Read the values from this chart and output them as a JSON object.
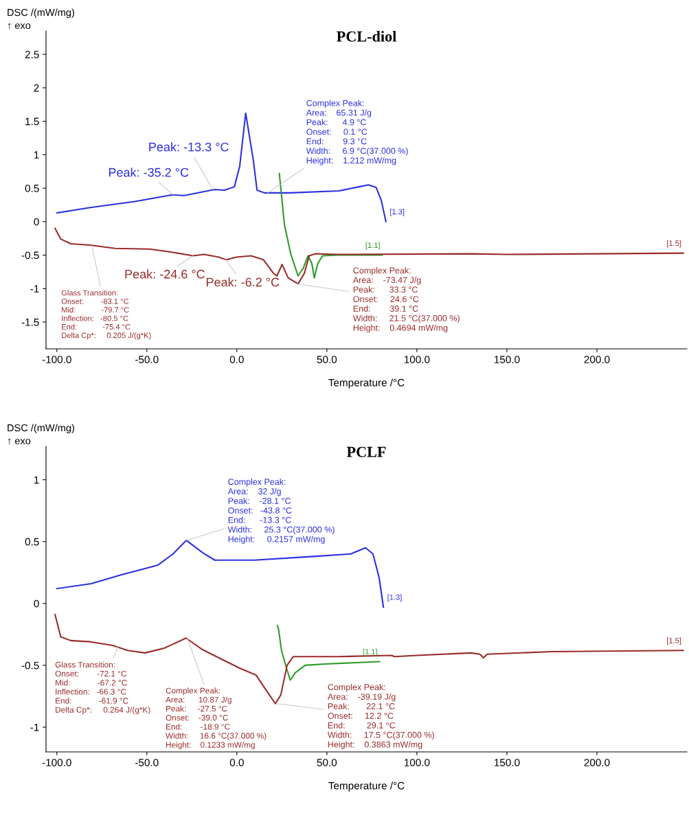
{
  "chart_data": [
    {
      "type": "line",
      "title": "PCL-diol",
      "xlabel": "Temperature /°C",
      "ylabel": "DSC /(mW/mg)\n↑ exo",
      "xlim": [
        -106,
        250
      ],
      "ylim": [
        -1.9,
        2.85
      ],
      "xticks": [
        {
          "value": -100,
          "label": "-100.0"
        },
        {
          "value": -50,
          "label": "-50.0"
        },
        {
          "value": 0,
          "label": "0.0"
        },
        {
          "value": 50,
          "label": "50.0"
        },
        {
          "value": 100,
          "label": "100.0"
        },
        {
          "value": 150,
          "label": "150.0"
        },
        {
          "value": 200,
          "label": "200.0"
        }
      ],
      "yticks": [
        2.5,
        2,
        1.5,
        1,
        0.5,
        0,
        -0.5,
        -1,
        -1.5
      ],
      "grid": false,
      "legend": false,
      "marker": "none",
      "line_style": "solid",
      "series": [
        {
          "name": "[1.3]",
          "color": "#2b2fe0",
          "x": [
            -99.9,
            -81.4,
            -56.7,
            -36.0,
            -29.2,
            -12.4,
            -6.9,
            -1.4,
            1.6,
            4.9,
            9.2,
            11.2,
            15.3,
            29.2,
            56.7,
            67.7,
            73.1,
            77.4,
            80.2,
            82.8
          ],
          "values": [
            0.13,
            0.21,
            0.3,
            0.4,
            0.39,
            0.48,
            0.47,
            0.52,
            0.83,
            1.62,
            0.91,
            0.47,
            0.43,
            0.43,
            0.46,
            0.52,
            0.55,
            0.51,
            0.32,
            0.0
          ]
        },
        {
          "name": "[1.1]",
          "color": "#2e9a2a",
          "x": [
            23.6,
            26.4,
            29.9,
            34.0,
            36.8,
            39.5,
            41.6,
            43.0,
            45.0,
            47.7,
            56.0,
            80.7
          ],
          "values": [
            0.72,
            -0.04,
            -0.48,
            -0.81,
            -0.7,
            -0.51,
            -0.62,
            -0.84,
            -0.62,
            -0.51,
            -0.5,
            -0.5
          ]
        },
        {
          "name": "[1.5]",
          "color": "#9a2b2b",
          "x": [
            -101,
            -97.8,
            -92.3,
            -81.4,
            -67.6,
            -48.4,
            -37.4,
            -24.4,
            -18.2,
            -10.0,
            -5.8,
            -0.3,
            7.9,
            14.8,
            20.3,
            22.3,
            25.1,
            28.5,
            34.0,
            37.5,
            40.2,
            43.7,
            56.1,
            130,
            150,
            200,
            248
          ],
          "values": [
            -0.1,
            -0.26,
            -0.33,
            -0.35,
            -0.4,
            -0.41,
            -0.45,
            -0.51,
            -0.49,
            -0.53,
            -0.57,
            -0.53,
            -0.51,
            -0.57,
            -0.77,
            -0.81,
            -0.64,
            -0.84,
            -0.93,
            -0.77,
            -0.51,
            -0.48,
            -0.49,
            -0.48,
            -0.49,
            -0.48,
            -0.47
          ]
        }
      ],
      "annotations": [
        {
          "text": "Peak: -35.2 °C",
          "x": -35.2,
          "y": 0.4
        },
        {
          "text": "Peak: -13.3 °C",
          "x": -13.3,
          "y": 0.48
        },
        {
          "text": "Complex Peak:\nArea:    65.31 J/g\nPeak:      4.9 °C\nOnset:     0.1 °C\nEnd:        9.3 °C\nWidth:     6.9 °C(37.000 %)\nHeight:    1.212 mW/mg",
          "x": 17,
          "y": 0.43
        },
        {
          "text": "Glass Transition:\nOnset:        -83.1 °C\nMid:            -79.7 °C\nInflection:   -80.5 °C\nEnd:            -75.4 °C\nDelta Cp*:     0.205 J/(g*K)",
          "x": -80.5,
          "y": -0.36
        },
        {
          "text": "Peak: -24.6 °C",
          "x": -24.6,
          "y": -0.51
        },
        {
          "text": "Peak: -6.2 °C",
          "x": -6.2,
          "y": -0.57
        },
        {
          "text": "Complex Peak:\nArea:    -73.47 J/g\nPeak:      33.3 °C\nOnset:     24.6 °C\nEnd:        39.1 °C\nWidth:     21.5 °C(37.000 %)\nHeight:    0.4694 mW/mg",
          "x": 33.3,
          "y": -0.93
        }
      ]
    },
    {
      "type": "line",
      "title": "PCLF",
      "xlabel": "Temperature /°C",
      "ylabel": "DSC /(mW/mg)\n↑ exo",
      "xlim": [
        -106,
        250
      ],
      "ylim": [
        -1.2,
        1.27
      ],
      "xticks": [
        {
          "value": -100,
          "label": "-100.0"
        },
        {
          "value": -50,
          "label": "-50.0"
        },
        {
          "value": 0,
          "label": "0.0"
        },
        {
          "value": 50,
          "label": "50.0"
        },
        {
          "value": 100,
          "label": "100.0"
        },
        {
          "value": 150,
          "label": "150.0"
        },
        {
          "value": 200,
          "label": "200.0"
        }
      ],
      "yticks": [
        1,
        0.5,
        0,
        -0.5,
        -1
      ],
      "grid": false,
      "legend": false,
      "marker": "none",
      "line_style": "solid",
      "series": [
        {
          "name": "[1.3]",
          "color": "#2b2fe0",
          "x": [
            -99.9,
            -80.9,
            -64.4,
            -43.8,
            -35.5,
            -28.1,
            -19.0,
            -12.3,
            9.6,
            42.6,
            63.2,
            71.5,
            75.6,
            79.0,
            81.4
          ],
          "values": [
            0.12,
            0.16,
            0.23,
            0.31,
            0.4,
            0.51,
            0.41,
            0.35,
            0.35,
            0.38,
            0.4,
            0.45,
            0.4,
            0.21,
            -0.03
          ]
        },
        {
          "name": "[1.1]",
          "color": "#2e9a2a",
          "x": [
            22.5,
            23.2,
            24.8,
            27.7,
            29.7,
            32.5,
            37.9,
            48.9,
            79.2
          ],
          "values": [
            -0.18,
            -0.21,
            -0.38,
            -0.53,
            -0.62,
            -0.56,
            -0.5,
            -0.49,
            -0.47
          ]
        },
        {
          "name": "[1.5]",
          "color": "#9a2b2b",
          "x": [
            -101,
            -97.8,
            -92.3,
            -81.4,
            -68.9,
            -60.7,
            -51.0,
            -40.1,
            -28.2,
            -19.5,
            -12.7,
            1.1,
            10.7,
            16.2,
            21.4,
            24.4,
            27.9,
            31.3,
            38.8,
            56.0,
            86.1,
            87.5,
            100,
            130,
            135,
            137,
            139,
            175,
            248
          ],
          "values": [
            -0.09,
            -0.27,
            -0.3,
            -0.31,
            -0.34,
            -0.38,
            -0.4,
            -0.36,
            -0.28,
            -0.37,
            -0.42,
            -0.52,
            -0.58,
            -0.7,
            -0.81,
            -0.74,
            -0.5,
            -0.43,
            -0.43,
            -0.43,
            -0.42,
            -0.43,
            -0.42,
            -0.4,
            -0.41,
            -0.44,
            -0.41,
            -0.39,
            -0.38
          ]
        }
      ],
      "annotations": [
        {
          "text": "Complex Peak:\nArea:    32 J/g\nPeak:    -28.1 °C\nOnset:   -43.8 °C\nEnd:      -13.3 °C\nWidth:     25.3 °C(37.000 %)\nHeight:     0.2157 mW/mg",
          "x": -28.1,
          "y": 0.51
        },
        {
          "text": "Glass Transition:\nOnset:        -72.1 °C\nMid:            -67.2 °C\nInflection:   -66.3 °C\nEnd:            -61.9 °C\nDelta Cp*:     0.264 J/(g*K)",
          "x": -66.3,
          "y": -0.35
        },
        {
          "text": "Complex Peak:\nArea:      10.87 J/g\nPeak:     -27.5 °C\nOnset:    -39.0 °C\nEnd:        -18.9 °C\nWidth:     16.6 °C(37.000 %)\nHeight:    0.1233 mW/mg",
          "x": -27.5,
          "y": -0.28
        },
        {
          "text": "Complex Peak:\nArea:    -39.19 J/g\nPeak:       22.1 °C\nOnset:     12.2 °C\nEnd:         29.1 °C\nWidth:     17.5 °C(37.000 %)\nHeight:    0.3863 mW/mg",
          "x": 22.1,
          "y": -0.81
        }
      ]
    }
  ]
}
